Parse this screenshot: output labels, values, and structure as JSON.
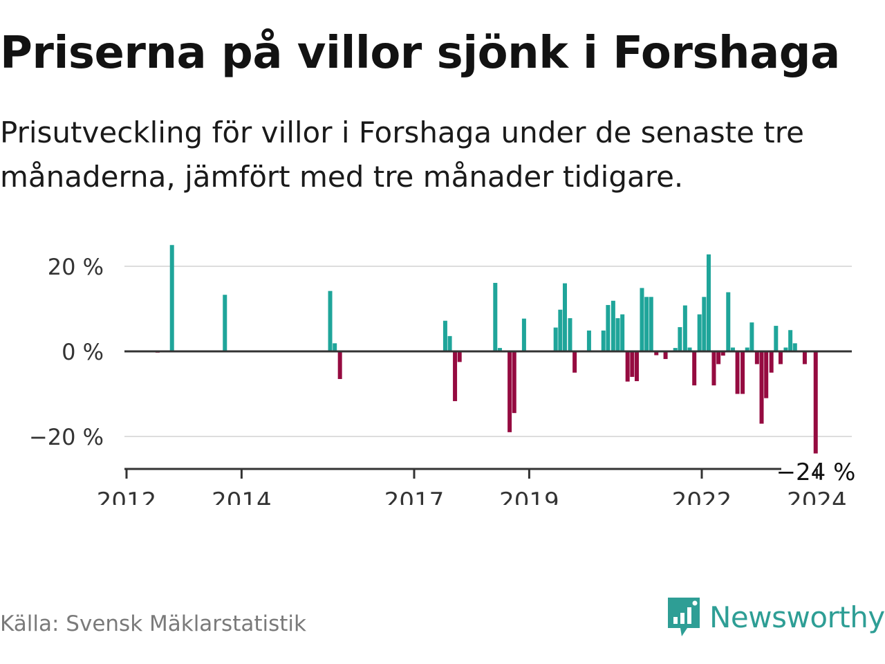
{
  "header": {
    "title": "Priserna på villor sjönk i Forshaga",
    "subtitle": "Prisutveckling för villor i Forshaga under de senaste tre månaderna, jämfört med tre månader tidigare."
  },
  "footer": {
    "source": "Källa: Svensk Mäklarstatistik",
    "brand": "Newsworthy"
  },
  "colors": {
    "positive": "#1fa59a",
    "negative": "#950b40",
    "grid": "#dddddd",
    "axis": "#333333",
    "brand": "#2e9e95"
  },
  "chart_data": {
    "type": "bar",
    "title": "Priserna på villor sjönk i Forshaga",
    "xlabel": "",
    "ylabel": "",
    "ylim": [
      -28,
      26
    ],
    "xlim": [
      2011.95,
      2024.4
    ],
    "yticks": [
      {
        "value": 20,
        "label": "20 %"
      },
      {
        "value": 0,
        "label": "0 %"
      },
      {
        "value": -20,
        "label": "−20 %"
      }
    ],
    "xticks": [
      {
        "value": 2012,
        "label": "2012"
      },
      {
        "value": 2014,
        "label": "2014"
      },
      {
        "value": 2017,
        "label": "2017"
      },
      {
        "value": 2019,
        "label": "2019"
      },
      {
        "value": 2022,
        "label": "2022"
      },
      {
        "value": 2024,
        "label": "2024"
      }
    ],
    "annotation": {
      "x": 2023.98,
      "value": -24,
      "label": "−24 %"
    },
    "x": [
      2012.54,
      2012.79,
      2013.71,
      2015.54,
      2015.62,
      2015.71,
      2017.54,
      2017.62,
      2017.71,
      2017.79,
      2018.41,
      2018.49,
      2018.66,
      2018.74,
      2018.91,
      2019.46,
      2019.54,
      2019.62,
      2019.71,
      2019.79,
      2020.04,
      2020.29,
      2020.37,
      2020.46,
      2020.54,
      2020.62,
      2020.71,
      2020.79,
      2020.87,
      2020.96,
      2021.04,
      2021.12,
      2021.21,
      2021.37,
      2021.54,
      2021.62,
      2021.71,
      2021.79,
      2021.87,
      2021.96,
      2022.04,
      2022.12,
      2022.21,
      2022.29,
      2022.37,
      2022.46,
      2022.54,
      2022.62,
      2022.71,
      2022.79,
      2022.87,
      2022.96,
      2023.04,
      2023.12,
      2023.21,
      2023.29,
      2023.37,
      2023.46,
      2023.54,
      2023.62,
      2023.79,
      2023.98
    ],
    "values": [
      -0.3,
      25,
      13.3,
      14.2,
      1.9,
      -6.5,
      7.2,
      3.6,
      -11.7,
      -2.5,
      16.1,
      0.8,
      -19,
      -14.5,
      7.7,
      5.6,
      9.8,
      16,
      7.8,
      -5,
      4.9,
      4.9,
      10.9,
      11.9,
      7.8,
      8.7,
      -7.1,
      -6,
      -7,
      14.9,
      12.8,
      12.8,
      -0.9,
      -1.8,
      0.8,
      5.7,
      10.8,
      0.9,
      -8,
      8.7,
      12.8,
      22.8,
      -8,
      -3,
      -1,
      13.9,
      0.9,
      -10,
      -10,
      0.9,
      6.8,
      -3,
      -17,
      -11,
      -5,
      6,
      -3,
      0.9,
      5,
      1.9,
      -3,
      -24
    ]
  }
}
